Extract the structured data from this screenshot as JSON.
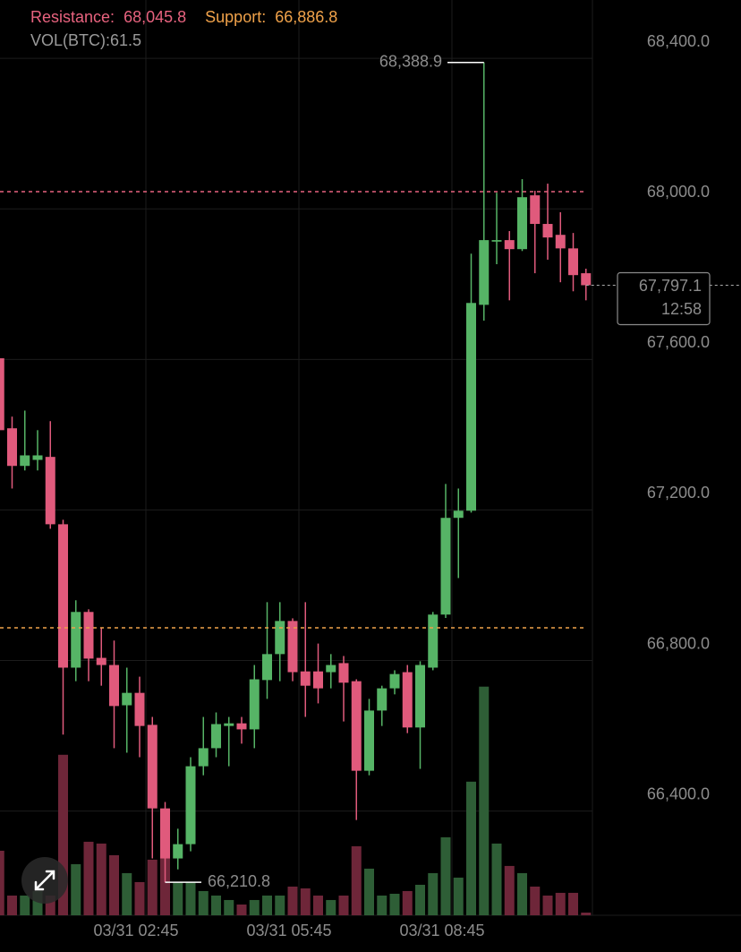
{
  "chart_data": {
    "type": "candlestick",
    "resistance_label": "Resistance:",
    "resistance": {
      "value": 68045.8,
      "label": "68,045.8"
    },
    "support_label": "Support:",
    "support": {
      "value": 66886.8,
      "label": "66,886.8"
    },
    "volume_label": "VOL(BTC):",
    "categories": [
      null,
      null,
      null,
      null,
      null,
      null,
      null,
      null,
      null,
      null,
      null,
      "03/31 02:45",
      null,
      null,
      null,
      null,
      null,
      null,
      null,
      null,
      null,
      null,
      null,
      "03/31 05:45",
      null,
      null,
      null,
      null,
      null,
      null,
      null,
      null,
      null,
      null,
      null,
      "03/31 08:45",
      null,
      null,
      null,
      null,
      null,
      null,
      null,
      null,
      null,
      null,
      null
    ],
    "open": [
      67603,
      67417,
      67317,
      67333,
      67341,
      67162,
      66781,
      66929,
      66807,
      66788,
      66681,
      66714,
      66629,
      66407,
      66274,
      66312,
      66519,
      66567,
      66626,
      66633,
      66617,
      66748,
      66817,
      66905,
      66771,
      66771,
      66769,
      66793,
      66745,
      66507,
      66667,
      66726,
      66769,
      66622,
      66781,
      66922,
      67179,
      67198,
      67745,
      67913,
      67917,
      67893,
      68036,
      67960,
      67931,
      67895,
      67829
    ],
    "high": [
      67615,
      67448,
      67464,
      67412,
      67436,
      67174,
      66960,
      66936,
      66888,
      66853,
      66781,
      66757,
      66650,
      66424,
      66353,
      66543,
      66650,
      66662,
      66650,
      66650,
      66788,
      66955,
      66955,
      66912,
      66955,
      66845,
      66817,
      66812,
      66750,
      66698,
      66733,
      66774,
      66788,
      66798,
      66929,
      67269,
      67257,
      67881,
      68388.9,
      68043,
      67941,
      68079,
      68048,
      68067,
      67991,
      67936,
      67841
    ],
    "low": [
      67400,
      67257,
      67305,
      67305,
      67150,
      66603,
      66745,
      66745,
      66733,
      66567,
      66555,
      66543,
      66274,
      66210.8,
      66245,
      66293,
      66495,
      66543,
      66519,
      66579,
      66567,
      66698,
      66745,
      66745,
      66650,
      66686,
      66726,
      66638,
      66376,
      66495,
      66626,
      66710,
      66607,
      66512,
      66774,
      66913,
      67019,
      67193,
      67703,
      67853,
      67757,
      67888,
      67829,
      67865,
      67805,
      67781,
      67757
    ],
    "close": [
      67412,
      67317,
      67345,
      67345,
      67162,
      66781,
      66929,
      66805,
      66788,
      66679,
      66714,
      66626,
      66407,
      66274,
      66312,
      66519,
      66567,
      66631,
      66633,
      66617,
      66750,
      66817,
      66905,
      66769,
      66733,
      66726,
      66788,
      66741,
      66507,
      66667,
      66726,
      66764,
      66622,
      66788,
      66922,
      67179,
      67198,
      67750,
      67917,
      67917,
      67893,
      68031,
      67960,
      67924,
      67895,
      67824,
      67797.1
    ],
    "volume": [
      1476,
      451,
      451,
      554,
      451,
      3670,
      1169,
      1681,
      1640,
      1374,
      964,
      759,
      1271,
      1579,
      759,
      759,
      554,
      451,
      349,
      246,
      349,
      451,
      451,
      656,
      615,
      451,
      349,
      451,
      1579,
      1066,
      451,
      492,
      554,
      697,
      964,
      1784,
      861,
      3055,
      5228,
      1640,
      1128,
      964,
      656,
      451,
      513,
      513,
      61.5
    ],
    "up_color": "#56b466",
    "down_color": "#e05a7c",
    "volume_up_color": "#2e5e36",
    "volume_down_color": "#6e2639",
    "resistance_color": "#e8637f",
    "support_color": "#f0a24a",
    "ylim": [
      66123,
      68555
    ],
    "yticks": [
      {
        "value": 68400,
        "label": "68,400.0"
      },
      {
        "value": 68000,
        "label": "68,000.0"
      },
      {
        "value": 67600,
        "label": "67,600.0"
      },
      {
        "value": 67200,
        "label": "67,200.0"
      },
      {
        "value": 66800,
        "label": "66,800.0"
      },
      {
        "value": 66400,
        "label": "66,400.0"
      }
    ],
    "vlim": [
      0,
      6000
    ],
    "high_label": {
      "value": 68388.9,
      "label": "68,388.9"
    },
    "low_label": {
      "value": 66210.8,
      "label": "66,210.8"
    },
    "last_price": {
      "value": 67797.1,
      "label": "67,797.1"
    },
    "countdown": "12:58",
    "grid": true
  }
}
